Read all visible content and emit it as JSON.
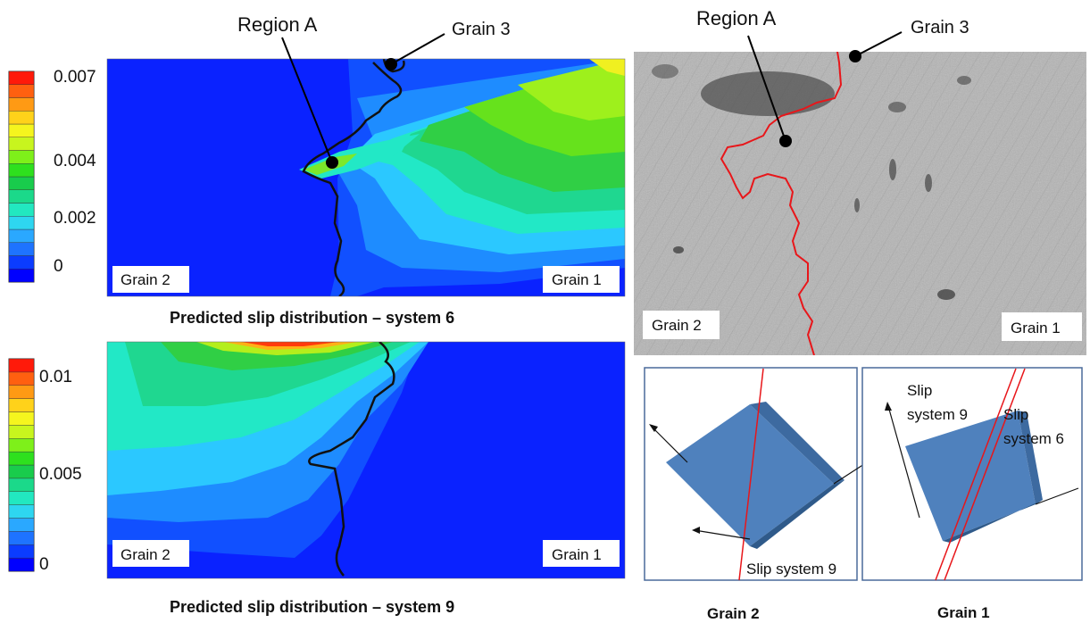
{
  "annotations": {
    "region_a_left": "Region A",
    "grain3_left": "Grain 3",
    "region_a_right": "Region A",
    "grain3_right": "Grain 3"
  },
  "colorbars": {
    "top": {
      "ticks": [
        "0.007",
        "0.004",
        "0.002",
        "0"
      ]
    },
    "bottom": {
      "ticks": [
        "0.01",
        "0.005",
        "0"
      ]
    },
    "palette": [
      "#0000ff",
      "#0b3cff",
      "#1e73ff",
      "#2aa8ff",
      "#2ed6f0",
      "#22e8c0",
      "#1bd98a",
      "#19cc4c",
      "#2ee01e",
      "#7ef01a",
      "#c8f51e",
      "#f5f51e",
      "#ffd21a",
      "#ff9a14",
      "#ff6010",
      "#ff1a0a"
    ]
  },
  "panels": {
    "top_map": {
      "grain_left": "Grain 2",
      "grain_right": "Grain 1",
      "caption": "Predicted slip distribution – system 6"
    },
    "bottom_map": {
      "grain_left": "Grain 2",
      "grain_right": "Grain 1",
      "caption": "Predicted slip distribution – system 9"
    },
    "micrograph": {
      "grain_left": "Grain 2",
      "grain_right": "Grain 1"
    },
    "cube_left": {
      "slip_label": "Slip system 9",
      "caption": "Grain 2"
    },
    "cube_right": {
      "slip9_line1": "Slip",
      "slip9_line2": "system 9",
      "slip6_line1": "Slip",
      "slip6_line2": "system 6",
      "caption": "Grain 1"
    }
  },
  "colors": {
    "boundary_red": "#e8161a",
    "cube_face": "#4f81bd",
    "cube_side": "#3d6aa0",
    "frame": "#4a6a9a"
  }
}
